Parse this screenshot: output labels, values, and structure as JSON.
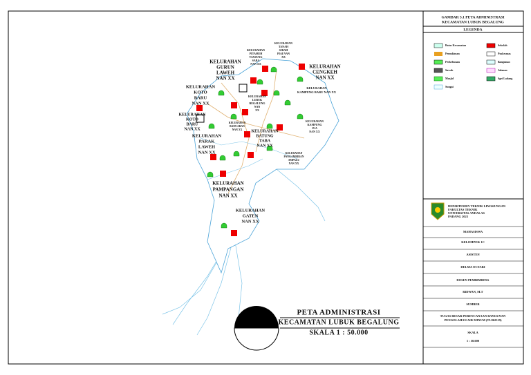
{
  "map_title": [
    "PETA ADMINISTRASI",
    "KECAMATAN LUBUK BEGALUNG",
    "SKALA 1 : 50.000"
  ],
  "labels": [
    {
      "lines": [
        "KELURAHAN",
        "TANAH",
        "SIRAH",
        "PIAI NAN",
        "XX"
      ]
    },
    {
      "lines": [
        "KELURAHAN",
        "PITAMEH",
        "TANJUNG",
        "SABA",
        "NAN XX"
      ]
    },
    {
      "lines": [
        "KELURAHAN",
        "GURUN",
        "LAWEH",
        "NAN XX"
      ]
    },
    {
      "lines": [
        "KELURAHAN",
        "CENGKEH",
        "NAN XX"
      ]
    },
    {
      "lines": [
        "KELURAHAN",
        "KAMPUNG BARU NAN XX"
      ]
    },
    {
      "lines": [
        "KELURAHAN",
        "KOTO",
        "BARU",
        "NAN XX"
      ]
    },
    {
      "lines": [
        "KELURAHAN",
        "LUBUK",
        "BEGALUNG",
        "NAN",
        "XX"
      ]
    },
    {
      "lines": [
        "KELURAHAN",
        "KOTO",
        "BARU",
        "NAN XX"
      ]
    },
    {
      "lines": [
        "KELURAHAN",
        "BANUARAN",
        "NAN XX"
      ]
    },
    {
      "lines": [
        "KELURAHAN",
        "KAMPUNG",
        "JUA",
        "NAN XX"
      ]
    },
    {
      "lines": [
        "KELURAHAN",
        "BATUNG",
        "TABA",
        "NAN XX"
      ]
    },
    {
      "lines": [
        "KELURAHAN",
        "PARAK",
        "LAWEH",
        "NAN XX"
      ]
    },
    {
      "lines": [
        "KELURAHAN",
        "PANGAMBIRAN",
        "AMPALU",
        "NAN XX"
      ]
    },
    {
      "lines": [
        "KELURAHAN",
        "PAMPANGAN",
        "NAN XX"
      ]
    },
    {
      "lines": [
        "KELURAHAN",
        "GATEN",
        "NAN XX"
      ]
    }
  ],
  "panel": {
    "title": [
      "GAMBAR 5.1 PETA ADMINISTRASI",
      "KECAMATAN LUBUK BEGALUNG"
    ],
    "legend_title": "LEGENDA",
    "legend": [
      "Batas Kecamatan",
      "Sekolah",
      "Pemukiman",
      "Puskesmas",
      "Perkebunan",
      "Bangunan",
      "Sawah",
      "Jalanan",
      "Masjid",
      "Sgei Ladang",
      "Sungai"
    ],
    "institution": [
      "DEPARTEMEN TEKNIK LINGKUNGAN",
      "FAKULTAS TEKNIK",
      "UNIVERSITAS ANDALAS",
      "PADANG 2023"
    ],
    "rows": [
      "MAHASISWA",
      "KELOMPOK 1C",
      "ASISTEN",
      "DELMA OCTARI",
      "DOSEN PEMBIMBING",
      "RIDWAN, M.T",
      "SUMBER",
      "TUGAS BESAR PERENCANAAN BANGUNAN",
      "PENGOLAHAN AIR MINUM (TL862319)",
      "SKALA",
      "1 : 50.000"
    ]
  }
}
